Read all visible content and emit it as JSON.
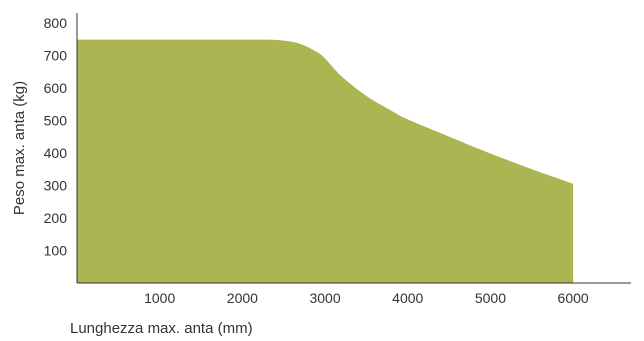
{
  "chart_data": {
    "type": "area",
    "xlabel": "Lunghezza max. anta (mm)",
    "ylabel": "Peso max. anta (kg)",
    "xlim": [
      0,
      6700
    ],
    "ylim": [
      0,
      830
    ],
    "x_ticks": [
      1000,
      2000,
      3000,
      4000,
      5000,
      6000
    ],
    "y_ticks": [
      100,
      200,
      300,
      400,
      500,
      600,
      700,
      800
    ],
    "grid": false,
    "legend": "none",
    "colors": {
      "fill": "#abb551",
      "axis": "#333333",
      "text": "#333333"
    },
    "series": [
      {
        "x": [
          0,
          500,
          1000,
          1500,
          2000,
          2300,
          2500,
          2700,
          2900,
          3000,
          3200,
          3500,
          3800,
          4000,
          4500,
          5000,
          5500,
          6000
        ],
        "values": [
          748,
          748,
          748,
          748,
          748,
          748,
          745,
          735,
          710,
          690,
          635,
          575,
          530,
          503,
          450,
          398,
          350,
          305
        ]
      }
    ]
  }
}
